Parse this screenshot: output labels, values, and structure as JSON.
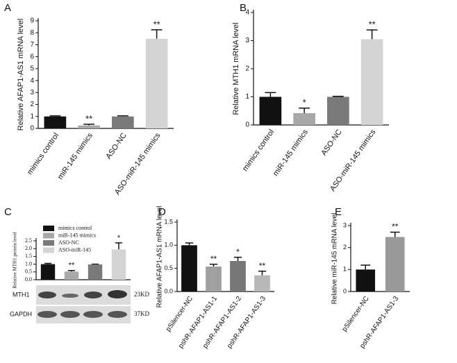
{
  "chart_data": [
    {
      "type": "bar",
      "label": "A",
      "ylabel": "Relative AFAP1-AS1 mRNA  level",
      "categories": [
        "mimics control",
        "miR-145 mimics",
        "ASO-NC",
        "ASO-miR-145 mimics"
      ],
      "values": [
        1.0,
        0.25,
        1.0,
        7.5
      ],
      "errors": [
        0.05,
        0.1,
        0.05,
        0.75
      ],
      "significance": [
        null,
        "**",
        null,
        "**"
      ],
      "colors": [
        "#111111",
        "#a8a8a8",
        "#7a7a7a",
        "#d4d4d4"
      ],
      "ylim": [
        0,
        9
      ],
      "yticks": [
        0,
        1,
        2,
        3,
        4,
        5,
        6,
        7,
        8,
        9
      ]
    },
    {
      "type": "bar",
      "label": "B",
      "ylabel": "Relative MTH1 mRNA  level",
      "categories": [
        "mimics control",
        "miR-145 mimics",
        "ASO-NC",
        "ASO-miR-145 mimics"
      ],
      "values": [
        1.0,
        0.42,
        1.0,
        3.05
      ],
      "errors": [
        0.15,
        0.18,
        0.02,
        0.33
      ],
      "significance": [
        null,
        "*",
        null,
        "**"
      ],
      "colors": [
        "#111111",
        "#a8a8a8",
        "#7a7a7a",
        "#d4d4d4"
      ],
      "ylim": [
        0,
        4
      ],
      "yticks": [
        0,
        1,
        2,
        3,
        4
      ]
    },
    {
      "type": "bar",
      "label": "C",
      "ylabel": "Relative MTH1 protein level",
      "legend": true,
      "categories": [
        "mimics control",
        "miR-145 mimics",
        "ASO-NC",
        "ASO-miR-145"
      ],
      "values": [
        1.0,
        0.52,
        0.98,
        1.95
      ],
      "errors": [
        0.05,
        0.07,
        0.02,
        0.42
      ],
      "significance": [
        null,
        "**",
        null,
        "*"
      ],
      "colors": [
        "#111111",
        "#a8a8a8",
        "#7a7a7a",
        "#d4d4d4"
      ],
      "ylim": [
        0,
        2.5
      ],
      "yticks": [
        {
          "value": 0,
          "label": "0.0"
        },
        0.5,
        {
          "value": 1,
          "label": "1.0"
        },
        1.5,
        {
          "value": 2,
          "label": "2.0"
        },
        2.5
      ],
      "blot": {
        "rows": [
          "MTH1",
          "GAPDH"
        ],
        "sizes": [
          "23KD",
          "37KD"
        ]
      }
    },
    {
      "type": "bar",
      "label": "D",
      "ylabel": "Relative AFAP1-AS1 mRNA  level",
      "categories": [
        "pSilencer-NC",
        "pshR-AFAP1-AS1-1",
        "pshR-AFAP1-AS1-2",
        "pshR-AFAP1-AS1-3"
      ],
      "values": [
        1.0,
        0.54,
        0.66,
        0.35
      ],
      "errors": [
        0.05,
        0.05,
        0.08,
        0.09
      ],
      "significance": [
        null,
        "**",
        "*",
        "**"
      ],
      "colors": [
        "#111111",
        "#a0a0a0",
        "#777777",
        "#b8b8b8"
      ],
      "ylim": [
        0,
        1.5
      ],
      "yticks": [
        {
          "value": 0,
          "label": "0.0"
        },
        0.5,
        {
          "value": 1,
          "label": "1.0"
        },
        1.5
      ]
    },
    {
      "type": "bar",
      "label": "E",
      "ylabel": "Relative miR-145 mRNA  level",
      "categories": [
        "pSilencer-NC",
        "pshR-AFAP1-AS1-3"
      ],
      "values": [
        1.0,
        2.48
      ],
      "errors": [
        0.2,
        0.22
      ],
      "significance": [
        null,
        "**"
      ],
      "colors": [
        "#111111",
        "#999999"
      ],
      "ylim": [
        0,
        3
      ],
      "yticks": [
        0,
        1,
        2,
        3
      ]
    }
  ]
}
